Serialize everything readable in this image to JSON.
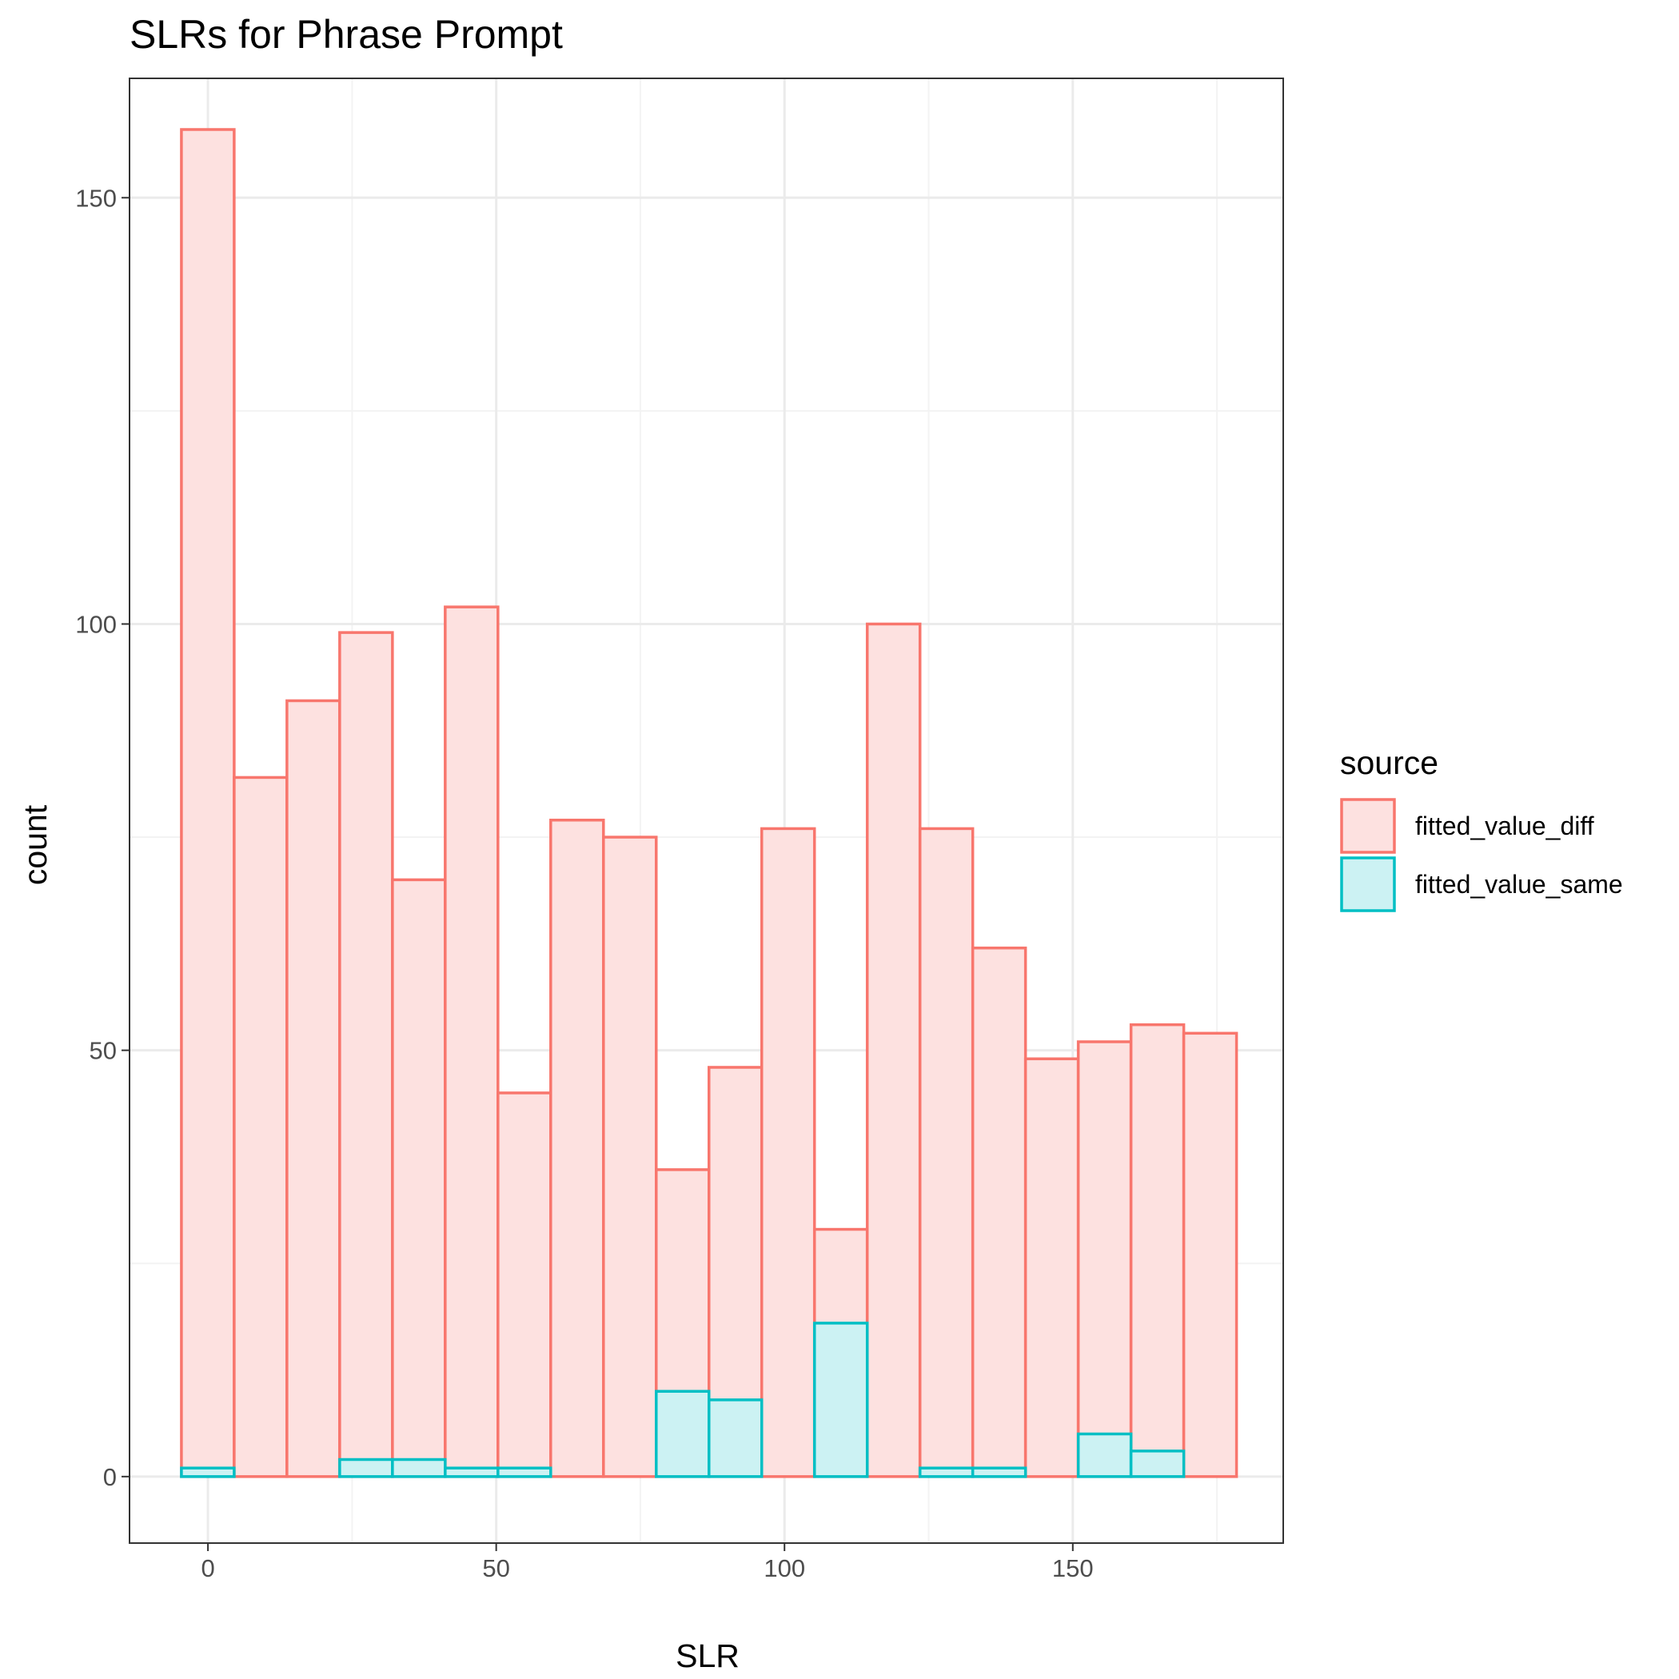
{
  "chart_data": {
    "type": "histogram",
    "title": "SLRs for Phrase Prompt",
    "xlabel": "SLR",
    "ylabel": "count",
    "xlim": [
      -13.6,
      186.5
    ],
    "ylim": [
      -7.8,
      164.0
    ],
    "x_ticks": [
      0,
      50,
      100,
      150
    ],
    "x_tick_labels": [
      "0",
      "50",
      "100",
      "150"
    ],
    "y_ticks": [
      0,
      50,
      100,
      150
    ],
    "y_tick_labels": [
      "0",
      "50",
      "100",
      "150"
    ],
    "y_minor_ticks": [
      25,
      75,
      125
    ],
    "x_minor_ticks": [
      25,
      75,
      125,
      175
    ],
    "grid": true,
    "bins": {
      "start": -4.6,
      "width": 9.15,
      "count": 20
    },
    "series": [
      {
        "name": "fitted_value_diff",
        "stroke": "#F8766D",
        "fill": "#FDE1E0",
        "values": [
          158,
          82,
          91,
          99,
          70,
          102,
          45,
          77,
          75,
          36,
          48,
          76,
          29,
          100,
          76,
          62,
          49,
          51,
          53,
          52
        ]
      },
      {
        "name": "fitted_value_same",
        "stroke": "#00BFC4",
        "fill": "#CCF2F3",
        "values": [
          1,
          0,
          0,
          2,
          2,
          1,
          1,
          0,
          0,
          10,
          9,
          0,
          18,
          0,
          1,
          1,
          0,
          5,
          3,
          0
        ]
      }
    ],
    "legend": {
      "title": "source",
      "position": "right",
      "items": [
        "fitted_value_diff",
        "fitted_value_same"
      ]
    }
  },
  "colors": {
    "panel_border": "#333333",
    "grid_major": "#EBEBEB",
    "grid_minor": "#F3F3F3",
    "tick": "#333333"
  }
}
